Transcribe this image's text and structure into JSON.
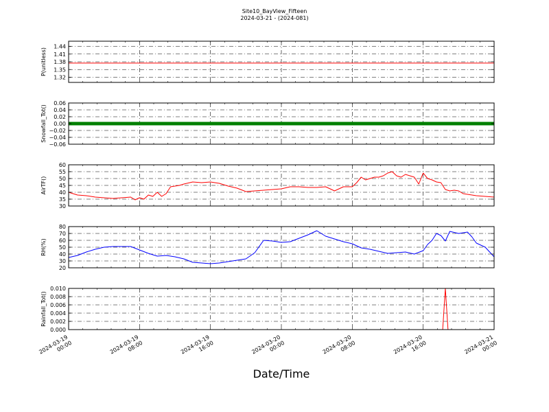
{
  "title": "Site10_BayView_Fifteen",
  "subtitle": "2024-03-21 - (2024-081)",
  "xlabel": "Date/Time",
  "chart_data": [
    {
      "type": "line",
      "ylabel": "P(unitless)",
      "ylim": [
        1.3,
        1.46
      ],
      "yticks": [
        "1.44",
        "1.41",
        "1.38",
        "1.35",
        "1.32"
      ],
      "ytick_values": [
        1.44,
        1.41,
        1.38,
        1.35,
        1.32
      ],
      "xlim": [
        0,
        48
      ],
      "grid": true,
      "color": "#ff0000",
      "x": [
        0,
        48
      ],
      "y": [
        1.375,
        1.375
      ]
    },
    {
      "type": "scatter",
      "ylabel": "Snowfall_Tot()",
      "ylim": [
        -0.06,
        0.06
      ],
      "yticks": [
        "0.06",
        "0.04",
        "0.02",
        "0.00",
        "−0.02",
        "−0.04",
        "−0.06"
      ],
      "ytick_values": [
        0.06,
        0.04,
        0.02,
        0.0,
        -0.02,
        -0.04,
        -0.06
      ],
      "xlim": [
        0,
        48
      ],
      "grid": true,
      "color": "#008000",
      "x": [
        0,
        48
      ],
      "y": [
        0.0,
        0.0
      ]
    },
    {
      "type": "line",
      "ylabel": "AirTF()",
      "ylim": [
        30,
        60
      ],
      "yticks": [
        "60",
        "55",
        "50",
        "45",
        "40",
        "35",
        "30"
      ],
      "ytick_values": [
        60,
        55,
        50,
        45,
        40,
        35,
        30
      ],
      "xlim": [
        0,
        48
      ],
      "grid": true,
      "color": "#ff0000",
      "x": [
        0,
        1,
        2,
        3,
        4,
        5,
        6,
        7,
        7.5,
        8,
        8.5,
        9,
        9.5,
        10,
        10.5,
        11,
        11.5,
        12,
        12.5,
        13,
        14,
        15,
        16,
        17,
        18,
        19,
        20,
        21,
        22,
        23,
        24,
        25,
        26,
        27,
        28,
        29,
        30,
        31,
        32,
        32.5,
        33,
        33.5,
        34,
        34.5,
        35,
        35.5,
        36,
        36.5,
        37,
        37.5,
        38,
        38.5,
        39,
        39.5,
        40,
        40.5,
        41,
        41.5,
        42,
        42.5,
        43,
        43.5,
        44,
        44.5,
        45,
        46,
        47,
        48
      ],
      "y": [
        40,
        38,
        37.5,
        36.5,
        36,
        35.5,
        36,
        36.5,
        34.5,
        36,
        35,
        38,
        37,
        40,
        37,
        39,
        44,
        44.5,
        45,
        46,
        47.5,
        47,
        47.5,
        46.5,
        44.5,
        43,
        40.5,
        41,
        41.5,
        42,
        42.5,
        44,
        44,
        43.5,
        43.5,
        44,
        41,
        44,
        44,
        47,
        51,
        49,
        50,
        51,
        51,
        52,
        54,
        55,
        52,
        51,
        53,
        52,
        51,
        46,
        54,
        50,
        49,
        47.5,
        47,
        42,
        41,
        41.5,
        41,
        39,
        38.5,
        37.5,
        37,
        36.5
      ]
    },
    {
      "type": "line",
      "ylabel": "RH(%)",
      "ylim": [
        20,
        80
      ],
      "yticks": [
        "80",
        "70",
        "60",
        "50",
        "40",
        "30",
        "20"
      ],
      "ytick_values": [
        80,
        70,
        60,
        50,
        40,
        30,
        20
      ],
      "xlim": [
        0,
        48
      ],
      "grid": true,
      "color": "#0000ff",
      "x": [
        0,
        1,
        2,
        3,
        4,
        5,
        6,
        7,
        8,
        9,
        10,
        11,
        12,
        13,
        14,
        15,
        16,
        17,
        18,
        19,
        20,
        21,
        22,
        23,
        24,
        25,
        26,
        27,
        28,
        29,
        30,
        31,
        32,
        33,
        34,
        35,
        36,
        37,
        38,
        39,
        40,
        40.5,
        41,
        41.5,
        42,
        42.5,
        43,
        44,
        45,
        45.5,
        46,
        47,
        48
      ],
      "y": [
        35,
        38,
        43,
        47,
        50,
        51,
        51,
        51,
        46,
        41,
        37,
        38,
        36,
        33,
        28,
        27,
        26,
        27,
        29,
        31,
        33,
        42,
        60,
        59,
        57,
        58,
        63,
        68,
        74,
        66,
        62,
        58,
        55,
        49,
        47,
        44,
        41,
        42,
        43,
        40,
        45,
        54,
        60,
        70,
        67,
        59,
        73,
        70,
        72,
        65,
        56,
        50,
        36
      ]
    },
    {
      "type": "line",
      "ylabel": "Rainfall_Tot()",
      "ylim": [
        0,
        0.01
      ],
      "yticks": [
        "0.010",
        "0.008",
        "0.006",
        "0.004",
        "0.002",
        "0.000"
      ],
      "ytick_values": [
        0.01,
        0.008,
        0.006,
        0.004,
        0.002,
        0.0
      ],
      "xlim": [
        0,
        48
      ],
      "grid": true,
      "color": "#ff0000",
      "x": [
        0,
        42.2,
        42.5,
        42.8,
        48
      ],
      "y": [
        0,
        0,
        0.01,
        0,
        0
      ]
    }
  ],
  "xticks": [
    {
      "x": 0,
      "line1": "2024-03-19",
      "line2": "00:00"
    },
    {
      "x": 8,
      "line1": "2024-03-19",
      "line2": "08:00"
    },
    {
      "x": 16,
      "line1": "2024-03-19",
      "line2": "16:00"
    },
    {
      "x": 24,
      "line1": "2024-03-20",
      "line2": "00:00"
    },
    {
      "x": 32,
      "line1": "2024-03-20",
      "line2": "08:00"
    },
    {
      "x": 40,
      "line1": "2024-03-20",
      "line2": "16:00"
    },
    {
      "x": 48,
      "line1": "2024-03-21",
      "line2": "00:00"
    }
  ]
}
